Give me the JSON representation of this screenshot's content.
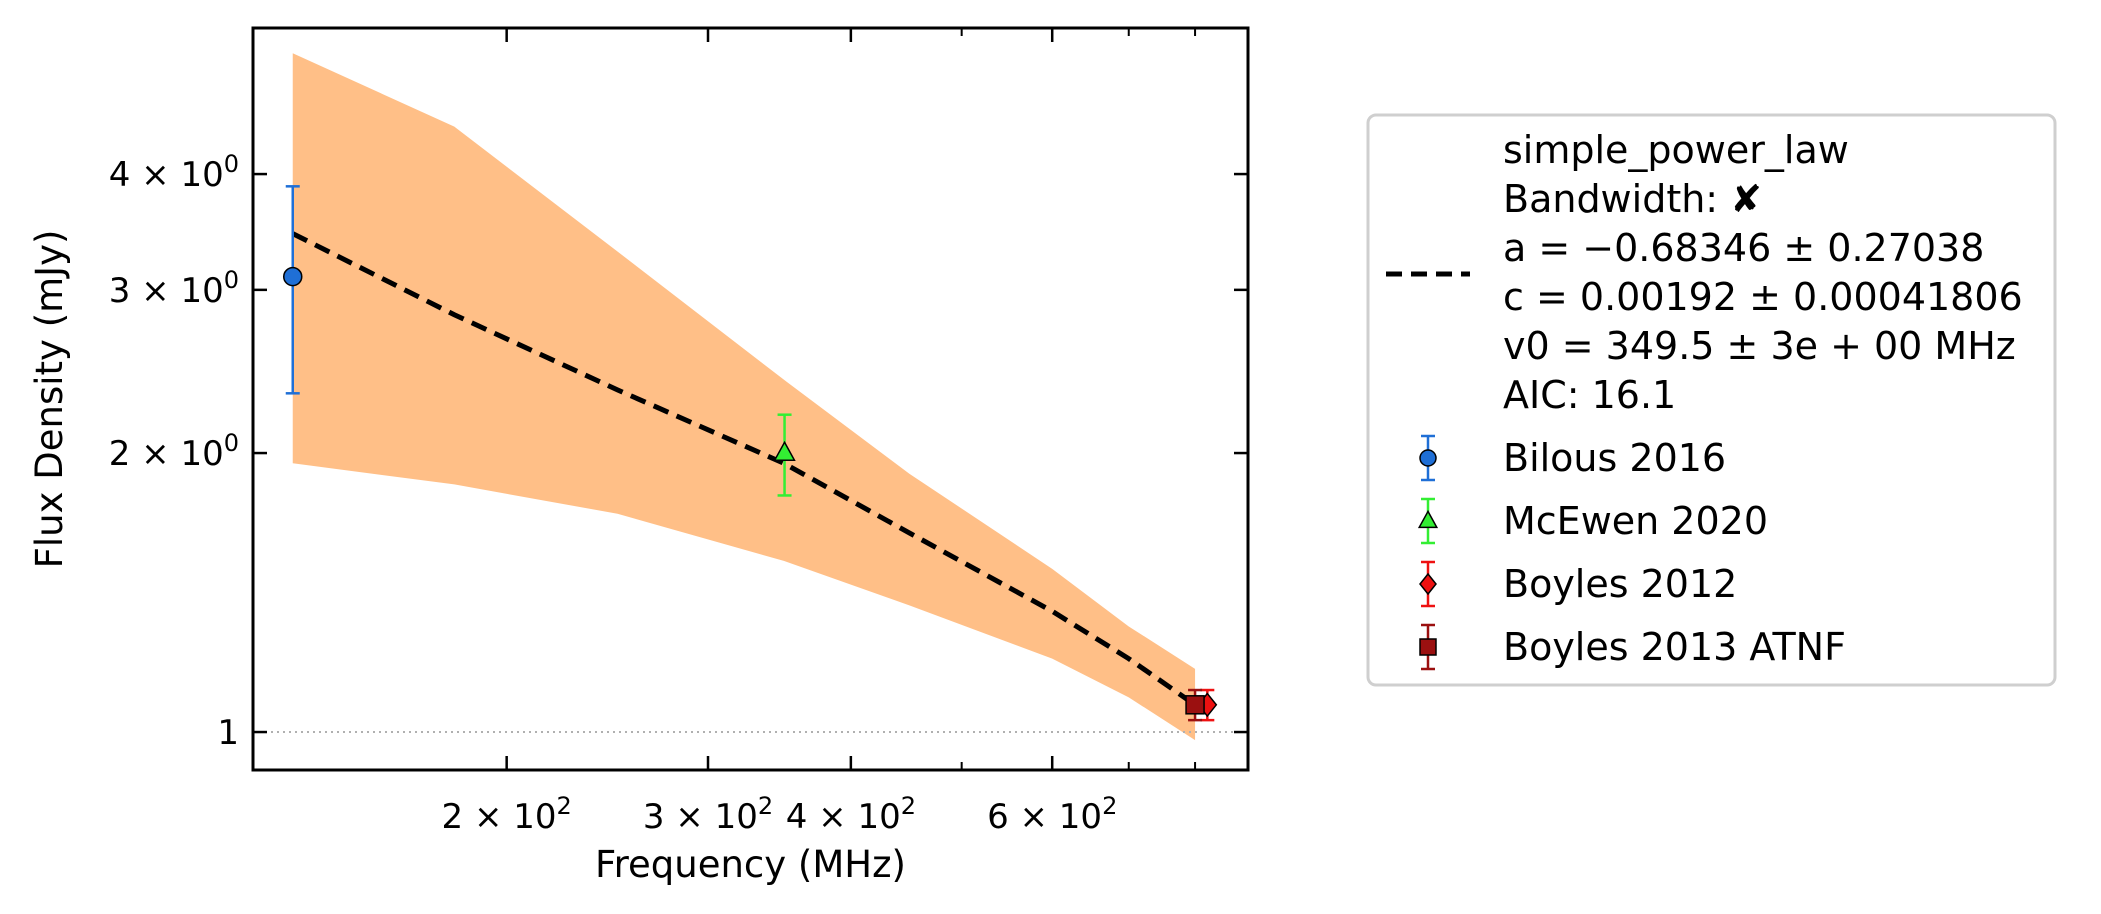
{
  "chart_data": {
    "type": "scatter",
    "title": "",
    "xlabel": "Frequency (MHz)",
    "ylabel": "Flux Density (mJy)",
    "xscale": "log",
    "yscale": "log",
    "xlim": [
      120,
      890
    ],
    "ylim": [
      0.91,
      5.75
    ],
    "grid": false,
    "legend_position": "outside-right",
    "x_ticks": [
      {
        "value": 200,
        "mantissa": "2",
        "exponent": "2"
      },
      {
        "value": 300,
        "mantissa": "3",
        "exponent": "2"
      },
      {
        "value": 400,
        "mantissa": "4",
        "exponent": "2"
      },
      {
        "value": 600,
        "mantissa": "6",
        "exponent": "2"
      }
    ],
    "y_ticks": [
      {
        "value": 1,
        "plain": "1"
      },
      {
        "value": 2,
        "mantissa": "2",
        "exponent": "0"
      },
      {
        "value": 3,
        "mantissa": "3",
        "exponent": "0"
      },
      {
        "value": 4,
        "mantissa": "4",
        "exponent": "0"
      }
    ],
    "reference_line": {
      "y": 1,
      "color": "#b0b0b0"
    },
    "fit": {
      "name": "simple_power_law",
      "x": [
        130,
        180,
        250,
        349.5,
        450,
        600,
        700,
        800
      ],
      "y": [
        3.45,
        2.82,
        2.34,
        1.95,
        1.64,
        1.35,
        1.2,
        1.07
      ],
      "band_upper": [
        5.4,
        4.5,
        3.3,
        2.4,
        1.9,
        1.5,
        1.3,
        1.17
      ],
      "band_lower": [
        1.95,
        1.85,
        1.72,
        1.53,
        1.37,
        1.2,
        1.09,
        0.98
      ],
      "line_color": "#000000",
      "band_color": "#ffbf87",
      "legend_lines": [
        "simple_power_law",
        "Bandwidth: ✘",
        "a = −0.68346 ± 0.27038",
        "c = 0.00192 ± 0.00041806",
        "v0 = 349.5 ± 3e + 00 MHz",
        "AIC: 16.1"
      ]
    },
    "series": [
      {
        "name": "Bilous 2016",
        "marker": "circle",
        "color": "#1f6fd6",
        "x": [
          130
        ],
        "y": [
          3.1
        ],
        "yerr_low": [
          2.32
        ],
        "yerr_high": [
          3.88
        ]
      },
      {
        "name": "McEwen 2020",
        "marker": "triangle",
        "color": "#33ee33",
        "x": [
          350
        ],
        "y": [
          2.0
        ],
        "yerr_low": [
          1.8
        ],
        "yerr_high": [
          2.2
        ]
      },
      {
        "name": "Boyles 2012",
        "marker": "diamond",
        "color": "#ee1111",
        "x": [
          820
        ],
        "y": [
          1.07
        ],
        "yerr_low": [
          1.03
        ],
        "yerr_high": [
          1.11
        ]
      },
      {
        "name": "Boyles 2013 ATNF",
        "marker": "square",
        "color": "#9b1010",
        "x": [
          800
        ],
        "y": [
          1.07
        ],
        "yerr_low": [
          1.03
        ],
        "yerr_high": [
          1.11
        ]
      }
    ]
  }
}
